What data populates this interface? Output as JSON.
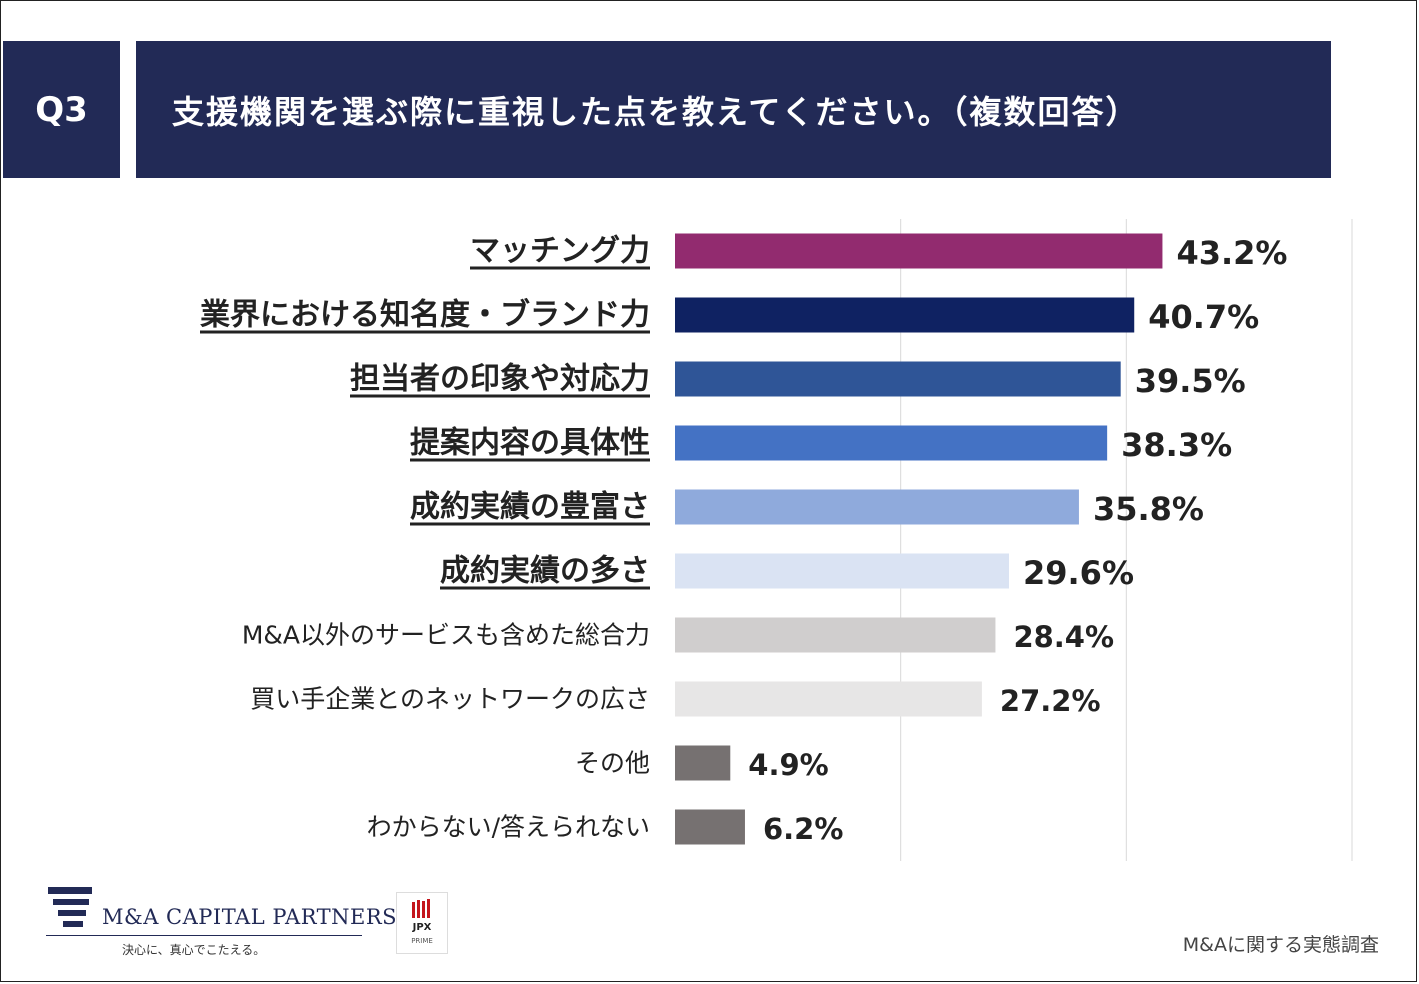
{
  "header": {
    "question_number": "Q3",
    "title": "支援機関を選ぶ際に重視した点を教えてください。（複数回答）"
  },
  "chart_data": {
    "type": "bar",
    "orientation": "horizontal",
    "title": "支援機関を選ぶ際に重視した点を教えてください。（複数回答）",
    "xlim": [
      0,
      60
    ],
    "grid": true,
    "categories": [
      "マッチング力",
      "業界における知名度・ブランド力",
      "担当者の印象や対応力",
      "提案内容の具体性",
      "成約実績の豊富さ",
      "成約実績の多さ",
      "M&A以外のサービスも含めた総合力",
      "買い手企業とのネットワークの広さ",
      "その他",
      "わからない/答えられない"
    ],
    "values": [
      43.2,
      40.7,
      39.5,
      38.3,
      35.8,
      29.6,
      28.4,
      27.2,
      4.9,
      6.2
    ],
    "value_labels": [
      "43.2%",
      "40.7%",
      "39.5%",
      "38.3%",
      "35.8%",
      "29.6%",
      "28.4%",
      "27.2%",
      "4.9%",
      "6.2%"
    ],
    "emphasized": [
      true,
      true,
      true,
      true,
      true,
      true,
      false,
      false,
      false,
      false
    ],
    "colors": [
      "#922b6f",
      "#0f2262",
      "#2f5597",
      "#4472c4",
      "#8faadc",
      "#dae3f3",
      "#d0cece",
      "#e7e6e6",
      "#767171",
      "#767171"
    ]
  },
  "footer": {
    "company_name": "M&A CAPITAL PARTNERS",
    "tagline": "決心に、真心でこたえる。",
    "jpx_name": "JPX",
    "jpx_sub": "PRIME",
    "source": "M&Aに関する実態調査"
  }
}
